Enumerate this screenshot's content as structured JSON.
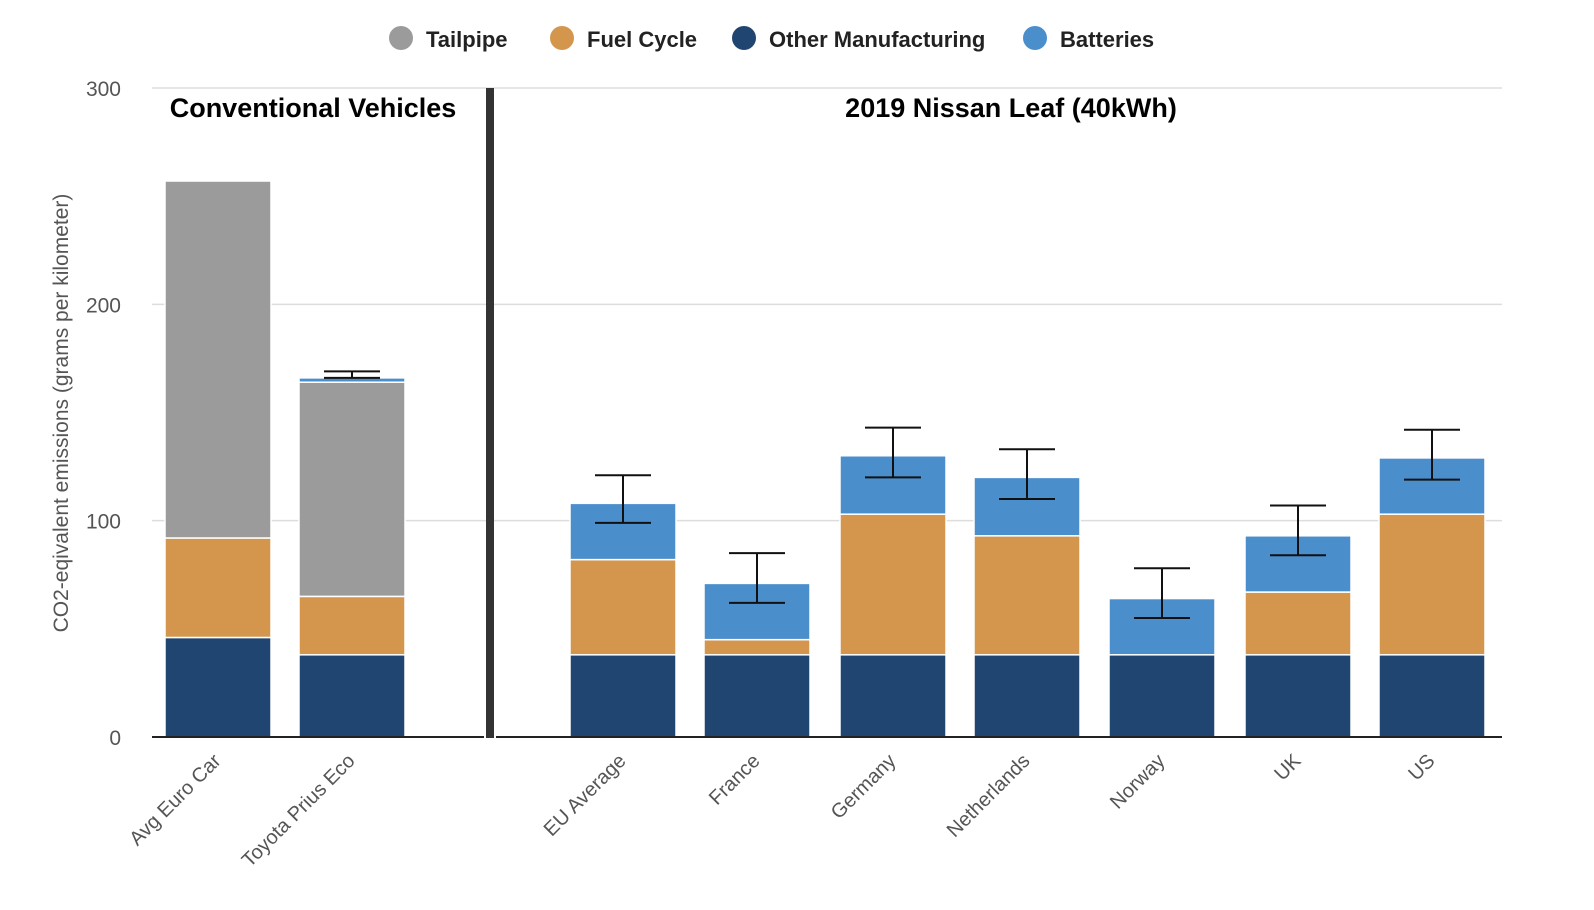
{
  "chart_data": {
    "type": "bar",
    "stacked": true,
    "categories": [
      "Avg Euro Car",
      "Toyota Prius Eco",
      "EU Average",
      "France",
      "Germany",
      "Netherlands",
      "Norway",
      "UK",
      "US"
    ],
    "series": [
      {
        "name": "Other Manufacturing",
        "color": "#1f4570",
        "values": [
          46,
          38,
          38,
          38,
          38,
          38,
          38,
          38,
          38
        ]
      },
      {
        "name": "Fuel Cycle",
        "color": "#d4964d",
        "values": [
          46,
          27,
          44,
          7,
          65,
          55,
          0,
          29,
          65
        ]
      },
      {
        "name": "Tailpipe",
        "color": "#9b9b9b",
        "values": [
          165,
          99,
          0,
          0,
          0,
          0,
          0,
          0,
          0
        ]
      },
      {
        "name": "Batteries",
        "color": "#4a8ecc",
        "values": [
          0,
          2,
          26,
          26,
          27,
          27,
          26,
          26,
          26
        ]
      }
    ],
    "error_bars": [
      null,
      [
        166,
        169
      ],
      [
        99,
        121
      ],
      [
        62,
        85
      ],
      [
        120,
        143
      ],
      [
        110,
        133
      ],
      [
        55,
        78
      ],
      [
        84,
        107
      ],
      [
        119,
        142
      ]
    ],
    "legend": [
      "Tailpipe",
      "Fuel Cycle",
      "Other Manufacturing",
      "Batteries"
    ],
    "legend_position": "top",
    "groups": [
      {
        "title": "Conventional Vehicles",
        "categories": [
          "Avg Euro Car",
          "Toyota Prius Eco"
        ]
      },
      {
        "title": "2019 Nissan Leaf (40kWh)",
        "categories": [
          "EU Average",
          "France",
          "Germany",
          "Netherlands",
          "Norway",
          "UK",
          "US"
        ]
      }
    ],
    "ylabel": "CO2-eqivalent emissions (grams per kilometer)",
    "xlabel": "",
    "ylim": [
      0,
      300
    ],
    "yticks": [
      0,
      100,
      200,
      300
    ],
    "grid": true
  }
}
